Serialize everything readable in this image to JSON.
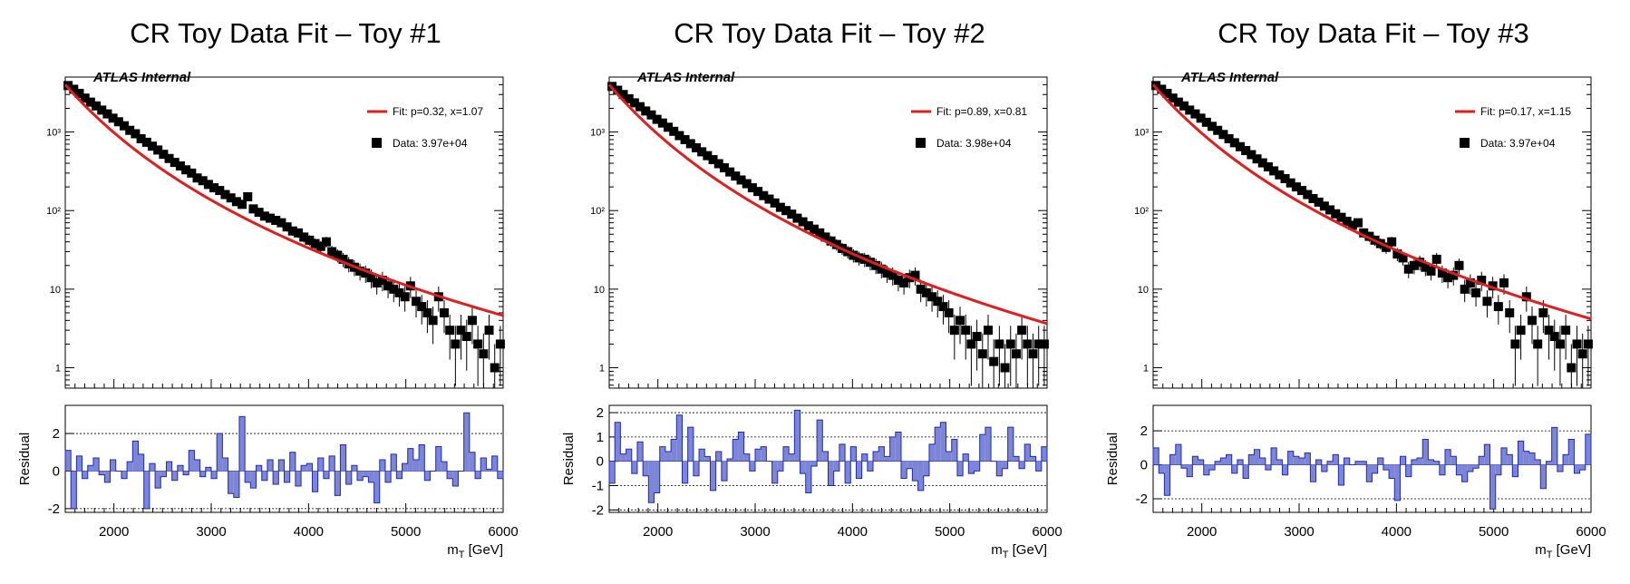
{
  "chart_data": [
    {
      "type": "scatter",
      "title": "CR Toy Data Fit – Toy #1",
      "label": "ATLAS Internal",
      "legend": {
        "fit": "Fit: p=0.32, x=1.07",
        "data": "Data: 3.97e+04",
        "placement": "top-right"
      },
      "xlabel": "m",
      "xlabel_sub": "T",
      "xlabel_unit": " [GeV]",
      "ylabel_residual": "Residual",
      "xlim": [
        1500,
        6000
      ],
      "ylim": [
        0.55,
        5000
      ],
      "yscale": "log",
      "x_ticks": [
        2000,
        3000,
        4000,
        5000,
        6000
      ],
      "y_tick_labels": [
        "1",
        "10",
        "10²",
        "10³"
      ],
      "residual_ylim": [
        -2.2,
        3.5
      ],
      "residual_ticks": [
        -2,
        0,
        2
      ],
      "fit": {
        "A": 4000,
        "k": 4.88
      },
      "residual": [
        1.1,
        -2.0,
        0.8,
        -0.4,
        0.3,
        0.7,
        -0.2,
        -0.6,
        0.6,
        0.0,
        -0.4,
        0.5,
        1.6,
        0.9,
        -2.0,
        0.4,
        -0.9,
        -0.3,
        0.5,
        -0.5,
        0.3,
        -0.2,
        1.1,
        0.6,
        -0.3,
        0.2,
        -0.4,
        2.0,
        0.7,
        -1.2,
        -1.4,
        2.9,
        -0.6,
        -0.9,
        0.3,
        -0.5,
        0.6,
        -0.7,
        0.6,
        -0.6,
        1.0,
        -0.8,
        0.3,
        0.4,
        -1.1,
        0.7,
        -0.4,
        0.8,
        -1.3,
        1.4,
        -0.7,
        0.3,
        -0.5,
        -0.3,
        -0.6,
        -1.7,
        0.6,
        -0.6,
        0.9,
        -0.4,
        0.4,
        1.2,
        0.6,
        1.4,
        -0.5,
        0.0,
        1.3,
        0.5,
        -0.4,
        -0.8,
        0.0,
        3.1,
        1.0,
        -0.4,
        0.7,
        0.1,
        0.8,
        -0.4
      ],
      "data": [
        3900,
        3500,
        3100,
        2700,
        2400,
        2150,
        1900,
        1700,
        1500,
        1350,
        1200,
        1050,
        950,
        820,
        740,
        660,
        590,
        520,
        460,
        410,
        370,
        330,
        300,
        260,
        240,
        215,
        195,
        180,
        160,
        145,
        130,
        120,
        150,
        105,
        95,
        85,
        80,
        75,
        70,
        62,
        55,
        52,
        46,
        42,
        38,
        35,
        40,
        30,
        27,
        24,
        21,
        19,
        17,
        16,
        14,
        12,
        13,
        11,
        10,
        9,
        8,
        11,
        7,
        6,
        5,
        4,
        8,
        5,
        3,
        2,
        3,
        2.5,
        4,
        2,
        1.5,
        3,
        1,
        2
      ]
    },
    {
      "type": "scatter",
      "title": "CR Toy Data Fit – Toy #2",
      "label": "ATLAS Internal",
      "legend": {
        "fit": "Fit: p=0.89, x=0.81",
        "data": "Data: 3.98e+04",
        "placement": "top-right"
      },
      "xlabel": "m",
      "xlabel_sub": "T",
      "xlabel_unit": " [GeV]",
      "ylabel_residual": "Residual",
      "xlim": [
        1500,
        6000
      ],
      "ylim": [
        0.55,
        5000
      ],
      "yscale": "log",
      "x_ticks": [
        2000,
        3000,
        4000,
        5000,
        6000
      ],
      "y_tick_labels": [
        "1",
        "10",
        "10²",
        "10³"
      ],
      "residual_ylim": [
        -2.1,
        2.3
      ],
      "residual_ticks": [
        -2,
        -1,
        0,
        1,
        2
      ],
      "fit": {
        "A": 4000,
        "k": 5.05
      },
      "residual": [
        -0.9,
        1.6,
        0.3,
        0.5,
        -0.5,
        0.8,
        -0.6,
        -1.7,
        -1.3,
        0.6,
        0.4,
        0.9,
        1.9,
        -0.9,
        1.4,
        -0.6,
        0.5,
        0.2,
        -1.2,
        0.4,
        -0.8,
        0.1,
        0.9,
        1.2,
        0.3,
        -0.4,
        0.5,
        0.6,
        0.0,
        -0.9,
        -0.4,
        0.6,
        0.3,
        2.1,
        -0.5,
        -1.3,
        -0.2,
        1.7,
        0.4,
        -1.0,
        -0.4,
        0.7,
        -0.9,
        0.6,
        -0.7,
        0.3,
        -0.4,
        0.4,
        0.6,
        0.2,
        1.0,
        1.2,
        -0.7,
        -0.3,
        -0.8,
        -1.2,
        -0.6,
        0.7,
        1.4,
        1.6,
        0.4,
        0.9,
        -0.6,
        0.3,
        -0.5,
        -0.4,
        1.1,
        1.4,
        0.0,
        -0.6,
        -0.3,
        1.4,
        0.2,
        -0.3,
        0.7,
        0.2,
        -0.4,
        0.6
      ],
      "data": [
        3800,
        3400,
        3000,
        2650,
        2350,
        2100,
        1850,
        1650,
        1450,
        1300,
        1150,
        1020,
        900,
        800,
        710,
        630,
        560,
        500,
        445,
        395,
        350,
        310,
        275,
        245,
        220,
        195,
        175,
        155,
        140,
        125,
        110,
        100,
        90,
        80,
        72,
        64,
        58,
        52,
        46,
        41,
        37,
        33,
        30,
        27,
        25,
        24,
        22,
        20,
        18,
        16,
        15,
        13,
        12,
        14,
        15,
        10,
        9,
        8,
        7,
        6,
        5,
        3,
        4,
        3,
        2,
        2.5,
        1.5,
        3,
        1.2,
        2,
        1,
        2,
        1.5,
        3,
        2,
        1.5,
        2,
        2
      ]
    },
    {
      "type": "scatter",
      "title": "CR Toy Data Fit – Toy #3",
      "label": "ATLAS Internal",
      "legend": {
        "fit": "Fit: p=0.17, x=1.15",
        "data": "Data: 3.97e+04",
        "placement": "top-right"
      },
      "xlabel": "m",
      "xlabel_sub": "T",
      "xlabel_unit": " [GeV]",
      "ylabel_residual": "Residual",
      "xlim": [
        1500,
        6000
      ],
      "ylim": [
        0.55,
        5000
      ],
      "yscale": "log",
      "x_ticks": [
        2000,
        3000,
        4000,
        5000,
        6000
      ],
      "y_tick_labels": [
        "1",
        "10",
        "10²",
        "10³"
      ],
      "residual_ylim": [
        -2.8,
        3.5
      ],
      "residual_ticks": [
        -2,
        0,
        2
      ],
      "fit": {
        "A": 4000,
        "k": 4.95
      },
      "residual": [
        1.0,
        -0.5,
        -1.8,
        0.6,
        1.2,
        -0.2,
        -0.7,
        0.5,
        0.3,
        -0.6,
        -0.3,
        0.2,
        0.4,
        0.6,
        -0.5,
        0.3,
        -0.8,
        0.6,
        0.9,
        0.4,
        -0.3,
        1.0,
        0.3,
        -0.6,
        0.8,
        0.5,
        0.4,
        0.7,
        -1.0,
        0.3,
        -0.4,
        0.2,
        0.6,
        -1.2,
        0.4,
        0.0,
        0.2,
        0.2,
        -1.0,
        -0.5,
        0.4,
        -0.3,
        -0.8,
        -2.1,
        0.5,
        -0.7,
        0.3,
        0.4,
        1.5,
        0.3,
        0.2,
        -0.6,
        0.9,
        0.5,
        -0.6,
        -1.0,
        -0.4,
        -0.2,
        0.5,
        1.2,
        -2.6,
        -0.6,
        1.0,
        0.6,
        -0.7,
        1.4,
        0.8,
        0.7,
        0.3,
        -1.4,
        0.2,
        2.2,
        -0.4,
        0.6,
        1.5,
        -0.5,
        -0.3,
        1.8
      ],
      "data": [
        3900,
        3500,
        3100,
        2700,
        2400,
        2150,
        1900,
        1700,
        1500,
        1330,
        1180,
        1050,
        930,
        820,
        730,
        650,
        580,
        515,
        455,
        405,
        360,
        320,
        285,
        255,
        225,
        200,
        180,
        160,
        142,
        128,
        114,
        102,
        91,
        82,
        73,
        65,
        70,
        52,
        47,
        42,
        38,
        34,
        40,
        28,
        25,
        18,
        20,
        22,
        19,
        17,
        24,
        16,
        14,
        15,
        20,
        10,
        12,
        9,
        13,
        7,
        11,
        6,
        12,
        5,
        2,
        3,
        8,
        4,
        2,
        5,
        3,
        2.5,
        2,
        3,
        1,
        2,
        1.5,
        2
      ]
    }
  ]
}
